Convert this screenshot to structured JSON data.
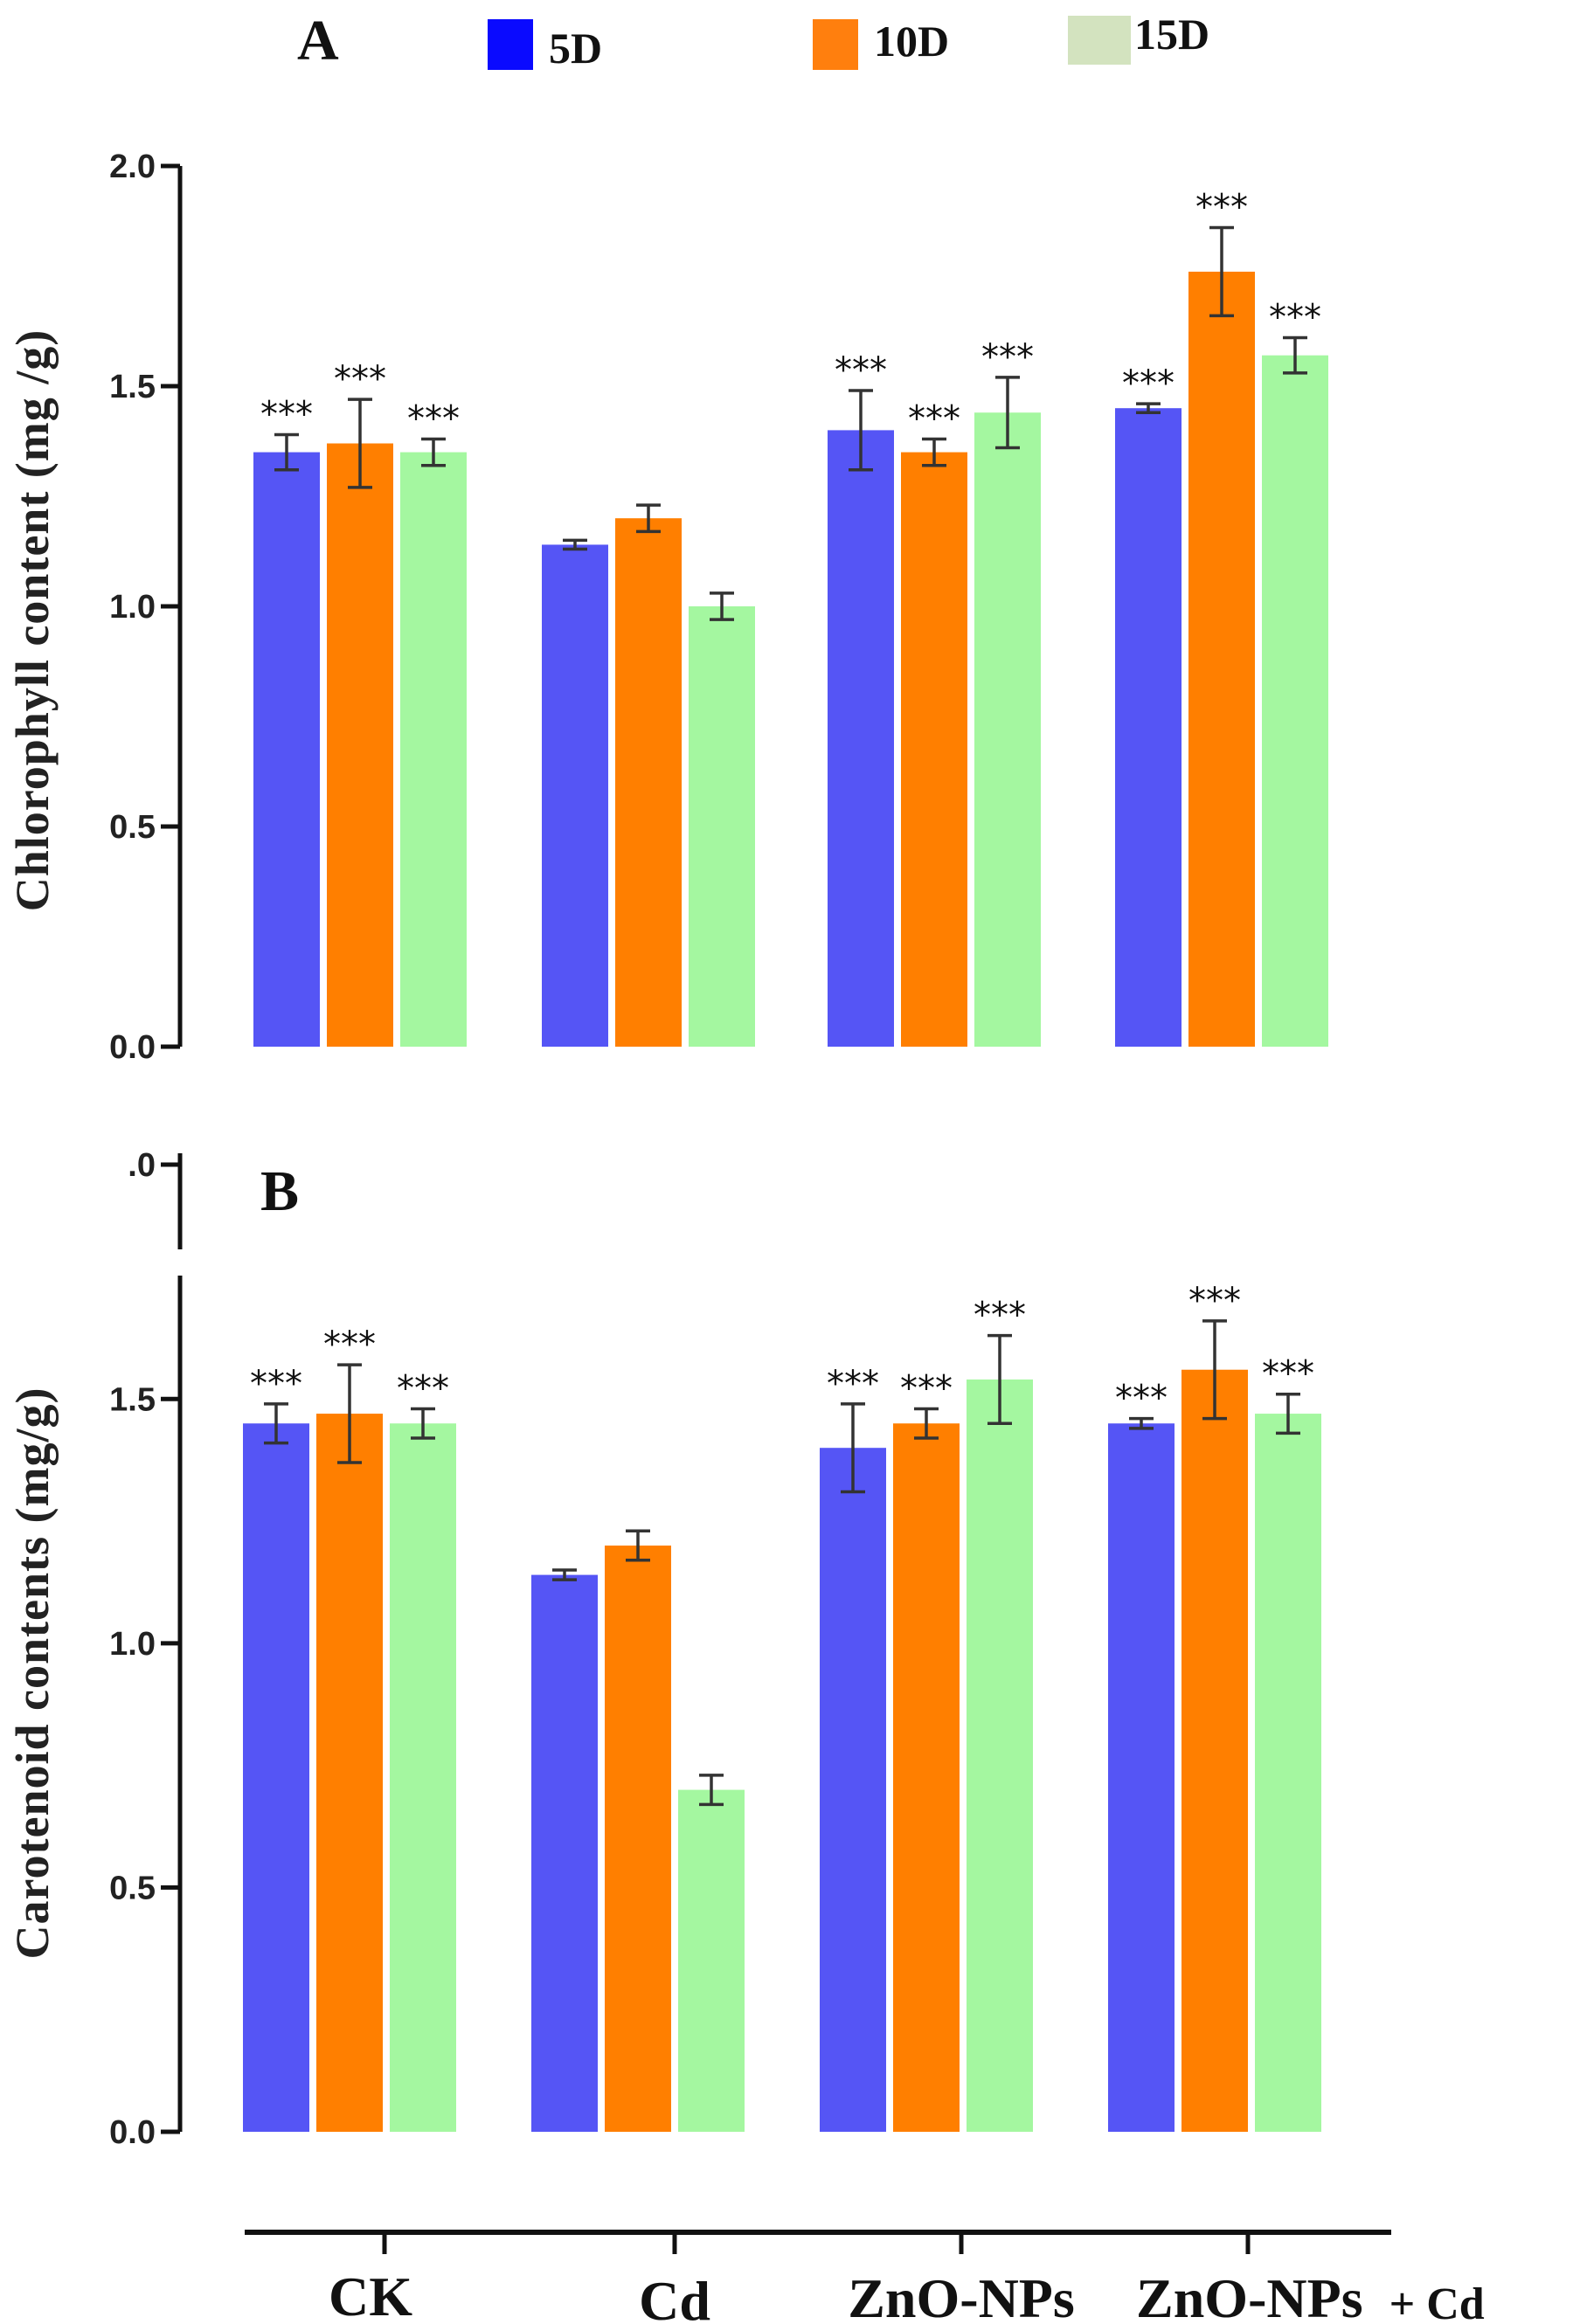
{
  "legend": {
    "items": [
      {
        "label": "5D",
        "color": "#0a0aff"
      },
      {
        "label": "10D",
        "color": "#ff7f0e"
      },
      {
        "label": "15D",
        "color": "#d3e3bf"
      }
    ]
  },
  "series_colors": [
    "#5555f5",
    "#ff7f00",
    "#a4f7a0"
  ],
  "x_axis": {
    "categories": [
      "CK",
      "Cd",
      "ZnO-NPs",
      "ZnO-NPs + Cd"
    ],
    "cat4_main": "ZnO-NPs",
    "cat4_suffix": "+ Cd"
  },
  "chart_data": [
    {
      "type": "bar",
      "panel": "A",
      "title": "",
      "xlabel": "",
      "ylabel": "Chlorophyll content (mg /g)",
      "ylim": [
        0,
        2.0
      ],
      "yticks": [
        0.0,
        0.5,
        1.0,
        1.5,
        2.0
      ],
      "ytick_labels": [
        "0.0",
        "0.5",
        "1.0",
        "1.5",
        "2.0"
      ],
      "categories": [
        "CK",
        "Cd",
        "ZnO-NPs",
        "ZnO-NPs + Cd"
      ],
      "series": [
        {
          "name": "5D",
          "values": [
            1.35,
            1.14,
            1.4,
            1.45
          ],
          "errors": [
            0.04,
            0.01,
            0.09,
            0.01
          ],
          "significance": [
            "***",
            "",
            "***",
            "***"
          ]
        },
        {
          "name": "10D",
          "values": [
            1.37,
            1.2,
            1.35,
            1.76
          ],
          "errors": [
            0.1,
            0.03,
            0.03,
            0.1
          ],
          "significance": [
            "***",
            "",
            "***",
            "***"
          ]
        },
        {
          "name": "15D",
          "values": [
            1.35,
            1.0,
            1.44,
            1.57
          ],
          "errors": [
            0.03,
            0.03,
            0.08,
            0.04
          ],
          "significance": [
            "***",
            "",
            "***",
            "***"
          ]
        }
      ]
    },
    {
      "type": "bar",
      "panel": "B",
      "title": "",
      "xlabel": "",
      "ylabel": "Carotenoid contents (mg/g)",
      "ylim": [
        0,
        1.75
      ],
      "yticks": [
        0.0,
        0.5,
        1.0,
        1.5
      ],
      "ytick_labels": [
        "0.0",
        "0.5",
        "1.0",
        "1.5"
      ],
      "axis_break": true,
      "break_tick_label": ".0",
      "categories": [
        "CK",
        "Cd",
        "ZnO-NPs",
        "ZnO-NPs + Cd"
      ],
      "series": [
        {
          "name": "5D",
          "values": [
            1.45,
            1.14,
            1.4,
            1.45
          ],
          "errors": [
            0.04,
            0.01,
            0.09,
            0.01
          ],
          "significance": [
            "***",
            "",
            "***",
            "***"
          ]
        },
        {
          "name": "10D",
          "values": [
            1.47,
            1.2,
            1.45,
            1.56
          ],
          "errors": [
            0.1,
            0.03,
            0.03,
            0.1
          ],
          "significance": [
            "***",
            "",
            "***",
            "***"
          ]
        },
        {
          "name": "15D",
          "values": [
            1.45,
            0.7,
            1.54,
            1.47
          ],
          "errors": [
            0.03,
            0.03,
            0.09,
            0.04
          ],
          "significance": [
            "***",
            "",
            "***",
            "***"
          ]
        }
      ]
    }
  ]
}
